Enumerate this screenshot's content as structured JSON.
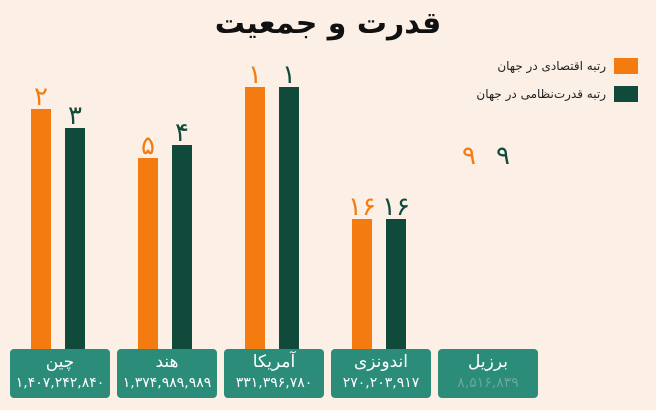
{
  "colors": {
    "economic": "#f47b10",
    "military": "#0f4a3a",
    "label_box": "#2a8c79",
    "background": "#fcf0e6"
  },
  "chart_data": {
    "type": "bar",
    "title": "قدرت و جمعیت",
    "categories": [
      "چین",
      "هند",
      "آمریکا",
      "اندونزی",
      "برزیل"
    ],
    "populations": [
      "۱,۴۰۷,۲۴۲,۸۴۰",
      "۱,۳۷۴,۹۸۹,۹۸۹",
      "۳۳۱,۳۹۶,۷۸۰",
      "۲۷۰,۲۰۳,۹۱۷",
      "۸,۵۱۶,۸۳۹"
    ],
    "series": [
      {
        "name": "رتبه اقتصادی در جهان",
        "values": [
          2,
          5,
          1,
          16,
          9
        ],
        "labels": [
          "۲",
          "۵",
          "۱",
          "۱۶",
          "۹"
        ]
      },
      {
        "name": "رتبه قدرت‌نظامی در جهان",
        "values": [
          3,
          4,
          1,
          16,
          9
        ],
        "labels": [
          "۳",
          "۴",
          "۱",
          "۱۶",
          "۹"
        ]
      }
    ],
    "legend_position": "top-right",
    "grid": false
  }
}
